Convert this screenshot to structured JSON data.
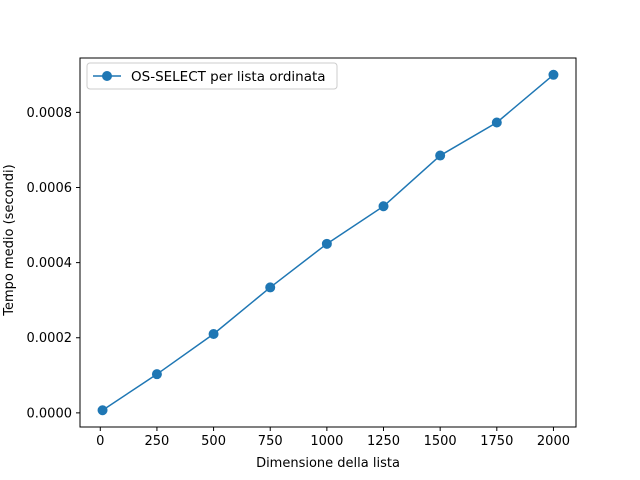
{
  "chart_data": {
    "type": "line",
    "title": "",
    "xlabel": "Dimensione della lista",
    "ylabel": "Tempo medio (secondi)",
    "x": [
      10,
      250,
      500,
      750,
      1000,
      1250,
      1500,
      1750,
      2000
    ],
    "series": [
      {
        "name": "OS-SELECT per lista ordinata",
        "values": [
          7e-06,
          0.000103,
          0.00021,
          0.000334,
          0.00045,
          0.00055,
          0.000685,
          0.000773,
          0.0009
        ],
        "color": "#1f77b4",
        "marker": "circle"
      }
    ],
    "xlim": [
      -89.5,
      2099.5
    ],
    "ylim": [
      -3.76e-05,
      0.0009447
    ],
    "xticks": [
      0,
      250,
      500,
      750,
      1000,
      1250,
      1500,
      1750,
      2000
    ],
    "xtick_labels": [
      "0",
      "250",
      "500",
      "750",
      "1000",
      "1250",
      "1500",
      "1750",
      "2000"
    ],
    "yticks": [
      0,
      0.0002,
      0.0004,
      0.0006,
      0.0008
    ],
    "ytick_labels": [
      "0.0000",
      "0.0002",
      "0.0004",
      "0.0006",
      "0.0008"
    ],
    "grid": false,
    "legend_position": "top-left"
  }
}
